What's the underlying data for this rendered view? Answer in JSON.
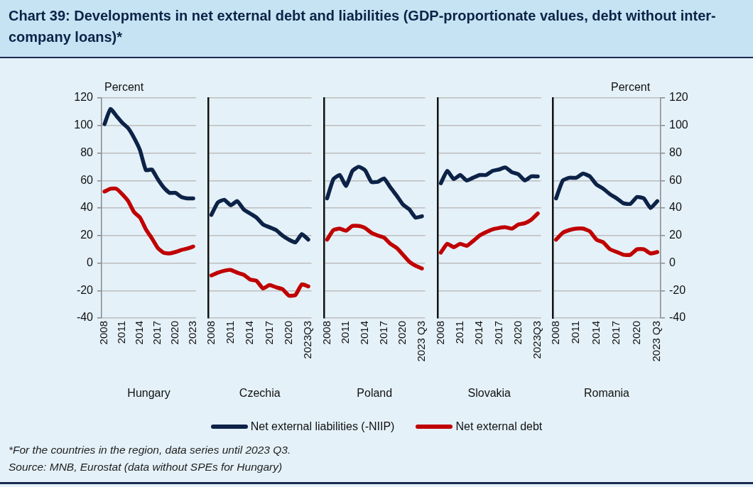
{
  "chart_data": [
    {
      "type": "line",
      "title": "Chart 39: Developments in net external debt and liabilities (GDP-proportionate values, debt without inter-company loans)*",
      "xlabel": "Hungary",
      "ylabel": "Percent",
      "legend": "bottom",
      "grid": "y",
      "ylim": [
        -40,
        120
      ],
      "yticks": [
        -40,
        -20,
        0,
        20,
        40,
        60,
        80,
        100,
        120
      ],
      "categories": [
        "2008",
        null,
        null,
        "2011",
        null,
        null,
        "2014",
        null,
        null,
        "2017",
        null,
        null,
        "2020",
        null,
        null,
        "2023"
      ],
      "series": [
        {
          "name": "Net external liabilities (-NIIP)",
          "color": "#0c2247",
          "values": [
            101,
            112,
            107,
            102,
            98,
            91,
            82,
            67.5,
            68,
            61,
            55,
            51,
            51,
            48,
            47,
            47
          ]
        },
        {
          "name": "Net external debt",
          "color": "#c00000",
          "values": [
            52,
            54,
            54,
            50,
            45,
            37,
            33,
            24.5,
            18,
            11,
            7.5,
            7,
            8,
            9.5,
            10.5,
            12
          ]
        }
      ],
      "annotations": [
        "*For the countries in the region, data series until 2023 Q3.",
        "Source: MNB, Eurostat (data without SPEs for Hungary)"
      ]
    },
    {
      "type": "line",
      "xlabel": "Czechia",
      "grid": "y",
      "tick_labels": "x",
      "ylim": [
        -40,
        120
      ],
      "yticks": [
        -40,
        -20,
        0,
        20,
        40,
        60,
        80,
        100,
        120
      ],
      "categories": [
        "2008",
        null,
        null,
        "2011",
        null,
        null,
        "2014",
        null,
        null,
        "2017",
        null,
        null,
        "2020",
        null,
        null,
        "2023Q3"
      ],
      "series": [
        {
          "color": "#0c2247",
          "values": [
            35,
            44,
            46,
            42,
            45,
            39,
            36,
            33,
            28,
            26,
            24,
            20,
            17,
            15,
            21,
            17
          ]
        },
        {
          "color": "#c00000",
          "values": [
            -9,
            -7,
            -5.6,
            -5,
            -7,
            -8.5,
            -12,
            -13,
            -18.5,
            -16,
            -17.6,
            -19,
            -23.7,
            -23.3,
            -15.5,
            -17
          ]
        }
      ]
    },
    {
      "type": "line",
      "xlabel": "Poland",
      "grid": "y",
      "tick_labels": "x",
      "ylim": [
        -40,
        120
      ],
      "yticks": [
        -40,
        -20,
        0,
        20,
        40,
        60,
        80,
        100,
        120
      ],
      "categories": [
        "2008",
        null,
        null,
        "2011",
        null,
        null,
        "2014",
        null,
        null,
        "2017",
        null,
        null,
        "2020",
        null,
        null,
        "2023 Q3"
      ],
      "series": [
        {
          "color": "#0c2247",
          "values": [
            47,
            61,
            64,
            56,
            67,
            70,
            67.5,
            59,
            59,
            61.5,
            55,
            49,
            42.5,
            39,
            33,
            34
          ]
        },
        {
          "color": "#c00000",
          "values": [
            17,
            24,
            25,
            23.5,
            27,
            27,
            25.5,
            22,
            20,
            18.5,
            14,
            11,
            6,
            1,
            -2,
            -4
          ]
        }
      ]
    },
    {
      "type": "line",
      "xlabel": "Slovakia",
      "grid": "y",
      "tick_labels": "x",
      "ylim": [
        -40,
        120
      ],
      "yticks": [
        -40,
        -20,
        0,
        20,
        40,
        60,
        80,
        100,
        120
      ],
      "categories": [
        "2008",
        null,
        null,
        "2011",
        null,
        null,
        "2014",
        null,
        null,
        "2017",
        null,
        null,
        "2020",
        null,
        null,
        "2023Q3"
      ],
      "series": [
        {
          "color": "#0c2247",
          "values": [
            58,
            67,
            61,
            64,
            60,
            62,
            64,
            64,
            67,
            68,
            69.5,
            66,
            64.5,
            60,
            63,
            63
          ]
        },
        {
          "color": "#c00000",
          "values": [
            7.6,
            14,
            11.5,
            14,
            12.5,
            16,
            20,
            22.5,
            24.5,
            25.5,
            26,
            25,
            28,
            29,
            31.5,
            36
          ]
        }
      ]
    },
    {
      "type": "line",
      "xlabel": "Romania",
      "y2label": "Percent",
      "grid": "y",
      "y2lim": [
        -40,
        120
      ],
      "y2ticks": [
        -40,
        -20,
        0,
        20,
        40,
        60,
        80,
        100,
        120
      ],
      "categories": [
        "2008",
        null,
        null,
        "2011",
        null,
        null,
        "2014",
        null,
        null,
        "2017",
        null,
        null,
        "2020",
        null,
        null,
        "2023 Q3"
      ],
      "series": [
        {
          "color": "#0c2247",
          "axis": "y2",
          "values": [
            47,
            60,
            62,
            62,
            65,
            63,
            57,
            54,
            50,
            47,
            43.4,
            43,
            48,
            47,
            40,
            45
          ]
        },
        {
          "color": "#c00000",
          "axis": "y2",
          "values": [
            17,
            22,
            24,
            25,
            25,
            23,
            17,
            15,
            10,
            8,
            6,
            6,
            10,
            10,
            7,
            8
          ]
        }
      ]
    }
  ]
}
